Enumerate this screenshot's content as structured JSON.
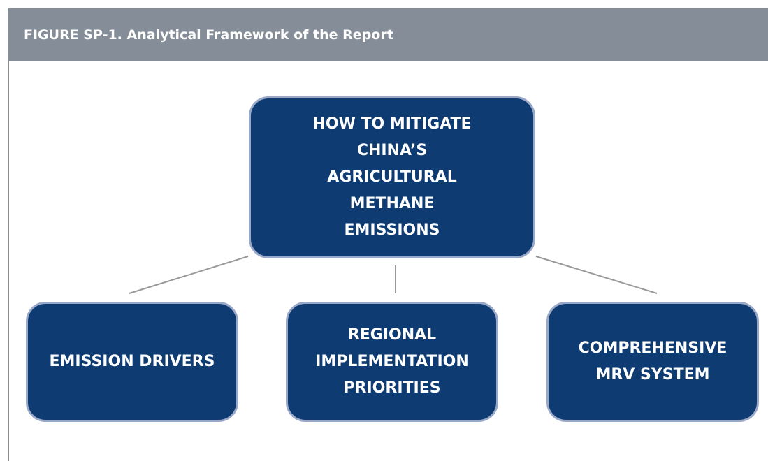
{
  "header": {
    "title": "FIGURE SP-1.  Analytical Framework of the Report"
  },
  "nodes": [
    {
      "label": "HOW TO MITIGATE CHINA’S AGRICULTURAL METHANE EMISSIONS"
    },
    {
      "label": "EMISSION DRIVERS"
    },
    {
      "label": "REGIONAL IMPLEMENTATION PRIORITIES"
    },
    {
      "label": "COMPREHENSIVE MRV SYSTEM"
    }
  ]
}
